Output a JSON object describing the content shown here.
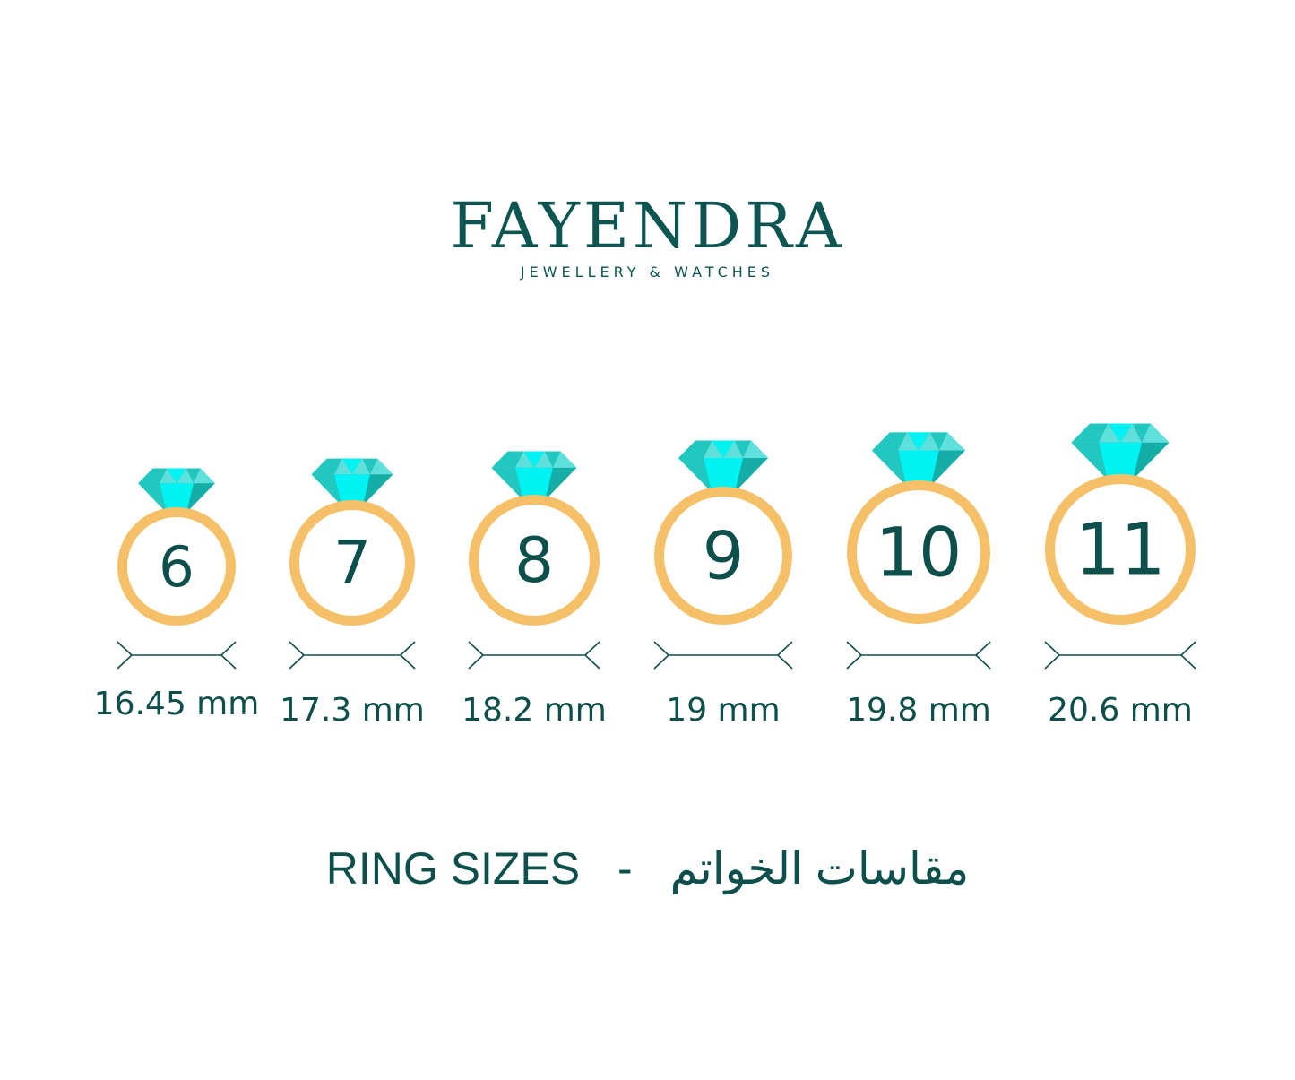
{
  "brand": {
    "name": "FAYENDRA",
    "tagline": "JEWELLERY & WATCHES"
  },
  "colors": {
    "text": "#0d4f4a",
    "ring": "#f6c068",
    "gem_light": "#5fe0dc",
    "gem_mid": "#22c8bf",
    "gem_bright": "#00f2f2",
    "gem_dark": "#15aea7"
  },
  "rings": [
    {
      "size": "6",
      "diameter": "16.45 mm"
    },
    {
      "size": "7",
      "diameter": "17.3 mm"
    },
    {
      "size": "8",
      "diameter": "18.2 mm"
    },
    {
      "size": "9",
      "diameter": "19 mm"
    },
    {
      "size": "10",
      "diameter": "19.8 mm"
    },
    {
      "size": "11",
      "diameter": "20.6 mm"
    }
  ],
  "footer": {
    "title_en": "RING SIZES",
    "separator": "-",
    "title_ar": "مقاسات الخواتم"
  }
}
